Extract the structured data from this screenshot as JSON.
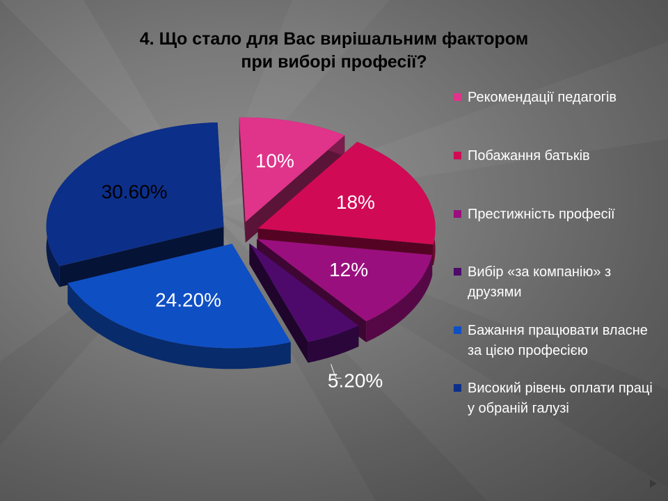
{
  "title_line1": "4. Що стало для Вас вирішальним фактором",
  "title_line2": "при виборі професії?",
  "legend": [
    {
      "label": "Рекомендації педагогів",
      "color": "#e0338a"
    },
    {
      "label": "Побажання батьків",
      "color": "#d10a55"
    },
    {
      "label": "Престижність професії",
      "color": "#9a0f7e"
    },
    {
      "label": "Вибір «за компанію» з друзями",
      "color": "#4d0a6b"
    },
    {
      "label": "Бажання працювати власне за цією професією",
      "color": "#0f4fc4"
    },
    {
      "label": "Високий рівень оплати праці у обраній галузі",
      "color": "#0c2f8a"
    }
  ],
  "chart_data": {
    "type": "pie",
    "title": "4. Що стало для Вас вирішальним фактором при виборі професії?",
    "slices": [
      {
        "label": "Рекомендації педагогів",
        "value": 10,
        "display": "10%",
        "color": "#e0338a",
        "label_color": "#ffffff"
      },
      {
        "label": "Побажання батьків",
        "value": 18,
        "display": "18%",
        "color": "#d10a55",
        "label_color": "#ffffff"
      },
      {
        "label": "Престижність професії",
        "value": 12,
        "display": "12%",
        "color": "#9a0f7e",
        "label_color": "#ffffff"
      },
      {
        "label": "Вибір «за компанію» з друзями",
        "value": 5.2,
        "display": "5.20%",
        "color": "#4d0a6b",
        "label_color": "#ffffff"
      },
      {
        "label": "Бажання працювати власне за цією професією",
        "value": 24.2,
        "display": "24.20%",
        "color": "#0f4fc4",
        "label_color": "#ffffff"
      },
      {
        "label": "Високий рівень оплати праці у обраній галузі",
        "value": 30.6,
        "display": "30.60%",
        "color": "#0c2f8a",
        "label_color": "#000000"
      }
    ],
    "legend_position": "right"
  }
}
